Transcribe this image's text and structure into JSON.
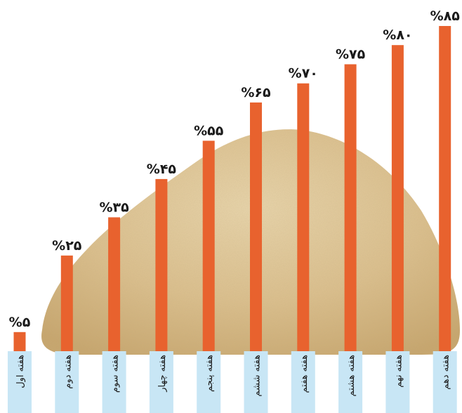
{
  "chart_data": {
    "type": "bar",
    "categories": [
      "هفته اول",
      "هفته دوم",
      "هفته سوم",
      "هفته چهارم",
      "هفته پنجم",
      "هفته ششم",
      "هفته هفتم",
      "هفته هشتم",
      "هفته نهم",
      "هفته دهم"
    ],
    "values": [
      5,
      25,
      35,
      45,
      55,
      65,
      70,
      75,
      80,
      85
    ],
    "value_labels": [
      "%۵",
      "%۲۵",
      "%۳۵",
      "%۴۵",
      "%۵۵",
      "%۶۵",
      "%۷۰",
      "%۷۵",
      "%۸۰",
      "%۸۵"
    ],
    "category_labels_visible": [
      "هفته اول",
      "هفته دوم",
      "هفته سوم",
      "هفته چهار",
      "هفته پنجم",
      "هفته ششم",
      "هفته هفتم",
      "هفته هشتم",
      "هفته نهم",
      "هفته دهم"
    ],
    "ylim": [
      0,
      85
    ],
    "grid": false,
    "title": "",
    "xlabel": "",
    "ylabel": ""
  },
  "colors": {
    "bar": "#E8622E",
    "label_box": "#C8E6F5",
    "text": "#1A1A1A",
    "sand_light": "#E9D4A8",
    "sand_mid": "#D7B985",
    "sand_dark": "#C19E64"
  }
}
